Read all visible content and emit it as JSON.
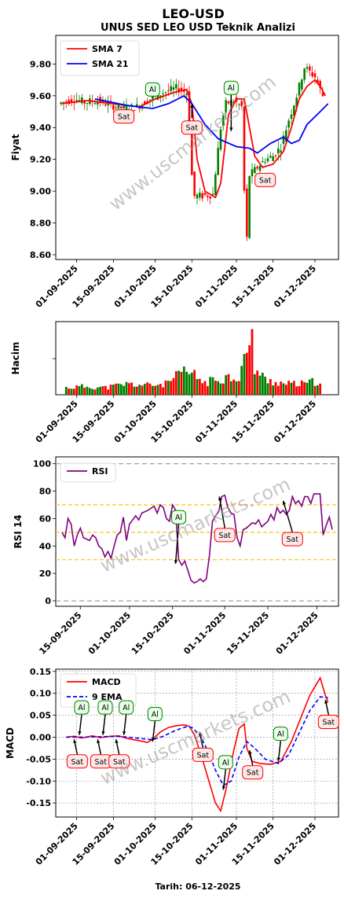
{
  "title": "LEO-USD",
  "subtitle": "UNUS SED LEO USD Teknik Analizi",
  "watermark": "www.uscmarkets.com",
  "footer": "Tarih: 06-12-2025",
  "colors": {
    "up": "#008000",
    "down": "#ff0000",
    "sma7": "#ff0000",
    "sma21": "#0000ff",
    "rsi": "#800080",
    "macd": "#ff0000",
    "ema": "#0000ff",
    "buy_border": "#008000",
    "sell_border": "#ff0000",
    "buy_fill": "#e8ffe8",
    "sell_fill": "#ffe8e8"
  },
  "chart_data": [
    {
      "id": "price",
      "type": "candlestick",
      "ylabel": "Fiyat",
      "ylim": [
        8.57,
        9.98
      ],
      "yticks": [
        8.6,
        8.8,
        9.0,
        9.2,
        9.4,
        9.6,
        9.8
      ],
      "ytick_labels": [
        "8.60",
        "8.80",
        "9.00",
        "9.20",
        "9.40",
        "9.60",
        "9.80"
      ],
      "xticks": [
        "01-09-2025",
        "15-09-2025",
        "01-10-2025",
        "15-10-2025",
        "01-11-2025",
        "15-11-2025",
        "01-12-2025"
      ],
      "legend": [
        "SMA 7",
        "SMA 21"
      ],
      "close_series": [
        [
          "2025-08-26",
          9.55
        ],
        [
          "2025-09-01",
          9.58
        ],
        [
          "2025-09-05",
          9.56
        ],
        [
          "2025-09-10",
          9.57
        ],
        [
          "2025-09-15",
          9.54
        ],
        [
          "2025-09-20",
          9.52
        ],
        [
          "2025-09-25",
          9.53
        ],
        [
          "2025-09-30",
          9.58
        ],
        [
          "2025-10-05",
          9.62
        ],
        [
          "2025-10-10",
          9.65
        ],
        [
          "2025-10-14",
          9.62
        ],
        [
          "2025-10-15",
          9.4
        ],
        [
          "2025-10-16",
          9.1
        ],
        [
          "2025-10-17",
          8.97
        ],
        [
          "2025-10-20",
          8.97
        ],
        [
          "2025-10-24",
          8.98
        ],
        [
          "2025-10-27",
          9.4
        ],
        [
          "2025-10-29",
          9.55
        ],
        [
          "2025-11-01",
          9.57
        ],
        [
          "2025-11-04",
          9.53
        ],
        [
          "2025-11-05",
          9.0
        ],
        [
          "2025-11-06",
          8.7
        ],
        [
          "2025-11-07",
          9.1
        ],
        [
          "2025-11-10",
          9.15
        ],
        [
          "2025-11-13",
          9.2
        ],
        [
          "2025-11-16",
          9.22
        ],
        [
          "2025-11-19",
          9.28
        ],
        [
          "2025-11-22",
          9.45
        ],
        [
          "2025-11-25",
          9.6
        ],
        [
          "2025-11-28",
          9.78
        ],
        [
          "2025-12-02",
          9.72
        ],
        [
          "2025-12-05",
          9.6
        ]
      ],
      "sma7": [
        [
          "2025-08-26",
          9.55
        ],
        [
          "2025-09-05",
          9.57
        ],
        [
          "2025-09-15",
          9.55
        ],
        [
          "2025-09-25",
          9.53
        ],
        [
          "2025-10-01",
          9.58
        ],
        [
          "2025-10-08",
          9.62
        ],
        [
          "2025-10-13",
          9.64
        ],
        [
          "2025-10-15",
          9.55
        ],
        [
          "2025-10-17",
          9.2
        ],
        [
          "2025-10-20",
          9.0
        ],
        [
          "2025-10-24",
          8.96
        ],
        [
          "2025-10-26",
          9.05
        ],
        [
          "2025-10-29",
          9.48
        ],
        [
          "2025-11-01",
          9.58
        ],
        [
          "2025-11-04",
          9.58
        ],
        [
          "2025-11-06",
          9.4
        ],
        [
          "2025-11-08",
          9.22
        ],
        [
          "2025-11-11",
          9.15
        ],
        [
          "2025-11-15",
          9.17
        ],
        [
          "2025-11-19",
          9.25
        ],
        [
          "2025-11-22",
          9.4
        ],
        [
          "2025-11-25",
          9.58
        ],
        [
          "2025-11-28",
          9.66
        ],
        [
          "2025-12-01",
          9.7
        ],
        [
          "2025-12-03",
          9.66
        ],
        [
          "2025-12-05",
          9.6
        ]
      ],
      "sma21": [
        [
          "2025-09-08",
          9.58
        ],
        [
          "2025-09-20",
          9.54
        ],
        [
          "2025-09-30",
          9.52
        ],
        [
          "2025-10-06",
          9.55
        ],
        [
          "2025-10-12",
          9.6
        ],
        [
          "2025-10-15",
          9.55
        ],
        [
          "2025-10-20",
          9.42
        ],
        [
          "2025-10-25",
          9.33
        ],
        [
          "2025-11-01",
          9.28
        ],
        [
          "2025-11-06",
          9.27
        ],
        [
          "2025-11-09",
          9.24
        ],
        [
          "2025-11-14",
          9.3
        ],
        [
          "2025-11-19",
          9.34
        ],
        [
          "2025-11-22",
          9.3
        ],
        [
          "2025-11-25",
          9.32
        ],
        [
          "2025-11-28",
          9.42
        ],
        [
          "2025-12-03",
          9.5
        ],
        [
          "2025-12-06",
          9.55
        ]
      ],
      "signals": [
        {
          "label": "Sat",
          "date": "2025-09-19",
          "value": 9.47
        },
        {
          "label": "Al",
          "date": "2025-09-30",
          "value": 9.64
        },
        {
          "label": "Sat",
          "date": "2025-10-15",
          "value": 9.4
        },
        {
          "label": "Al",
          "date": "2025-10-30",
          "value": 9.65
        },
        {
          "label": "Sat",
          "date": "2025-11-12",
          "value": 9.07
        }
      ]
    },
    {
      "id": "volume",
      "type": "bar",
      "ylabel": "Hacim",
      "xticks": [
        "01-09-2025",
        "15-09-2025",
        "01-10-2025",
        "15-10-2025",
        "01-11-2025",
        "15-11-2025",
        "01-12-2025"
      ],
      "volumes": [
        [
          "2025-08-28",
          0.12
        ],
        [
          "2025-09-05",
          0.14
        ],
        [
          "2025-09-12",
          0.12
        ],
        [
          "2025-09-20",
          0.18
        ],
        [
          "2025-09-28",
          0.16
        ],
        [
          "2025-10-05",
          0.18
        ],
        [
          "2025-10-12",
          0.38
        ],
        [
          "2025-10-15",
          0.35
        ],
        [
          "2025-10-20",
          0.2
        ],
        [
          "2025-10-28",
          0.3
        ],
        [
          "2025-11-02",
          0.3
        ],
        [
          "2025-11-05",
          0.76
        ],
        [
          "2025-11-06",
          0.65
        ],
        [
          "2025-11-07",
          1.0
        ],
        [
          "2025-11-08",
          0.45
        ],
        [
          "2025-11-12",
          0.25
        ],
        [
          "2025-11-20",
          0.18
        ],
        [
          "2025-11-27",
          0.18
        ],
        [
          "2025-12-04",
          0.25
        ]
      ]
    },
    {
      "id": "rsi",
      "type": "line",
      "ylabel": "RSI 14",
      "ylim": [
        -4,
        105
      ],
      "yticks": [
        0,
        20,
        40,
        60,
        80,
        100
      ],
      "ytick_labels": [
        "0",
        "20",
        "40",
        "60",
        "80",
        "100"
      ],
      "xticks": [
        "15-09-2025",
        "01-10-2025",
        "15-10-2025",
        "01-11-2025",
        "15-11-2025",
        "01-12-2025"
      ],
      "legend": [
        "RSI"
      ],
      "hlines": [
        0,
        30,
        50,
        70,
        100
      ],
      "values": [
        [
          "2025-09-09",
          50
        ],
        [
          "2025-09-10",
          46
        ],
        [
          "2025-09-11",
          60
        ],
        [
          "2025-09-12",
          56
        ],
        [
          "2025-09-13",
          40
        ],
        [
          "2025-09-14",
          48
        ],
        [
          "2025-09-15",
          53
        ],
        [
          "2025-09-16",
          46
        ],
        [
          "2025-09-18",
          44
        ],
        [
          "2025-09-19",
          48
        ],
        [
          "2025-09-20",
          46
        ],
        [
          "2025-09-21",
          40
        ],
        [
          "2025-09-22",
          38
        ],
        [
          "2025-09-23",
          32
        ],
        [
          "2025-09-24",
          36
        ],
        [
          "2025-09-25",
          31
        ],
        [
          "2025-09-26",
          40
        ],
        [
          "2025-09-27",
          48
        ],
        [
          "2025-09-28",
          50
        ],
        [
          "2025-09-29",
          61
        ],
        [
          "2025-09-30",
          44
        ],
        [
          "2025-10-01",
          56
        ],
        [
          "2025-10-02",
          59
        ],
        [
          "2025-10-03",
          62
        ],
        [
          "2025-10-04",
          59
        ],
        [
          "2025-10-05",
          64
        ],
        [
          "2025-10-07",
          66
        ],
        [
          "2025-10-09",
          69
        ],
        [
          "2025-10-10",
          64
        ],
        [
          "2025-10-11",
          70
        ],
        [
          "2025-10-12",
          68
        ],
        [
          "2025-10-13",
          60
        ],
        [
          "2025-10-14",
          58
        ],
        [
          "2025-10-15",
          70
        ],
        [
          "2025-10-16",
          66
        ],
        [
          "2025-10-17",
          30
        ],
        [
          "2025-10-18",
          26
        ],
        [
          "2025-10-19",
          29
        ],
        [
          "2025-10-20",
          22
        ],
        [
          "2025-10-21",
          15
        ],
        [
          "2025-10-22",
          13
        ],
        [
          "2025-10-23",
          14
        ],
        [
          "2025-10-24",
          16
        ],
        [
          "2025-10-25",
          14
        ],
        [
          "2025-10-26",
          16
        ],
        [
          "2025-10-27",
          33
        ],
        [
          "2025-10-28",
          58
        ],
        [
          "2025-10-29",
          62
        ],
        [
          "2025-10-30",
          65
        ],
        [
          "2025-10-31",
          76
        ],
        [
          "2025-11-01",
          77
        ],
        [
          "2025-11-02",
          68
        ],
        [
          "2025-11-03",
          64
        ],
        [
          "2025-11-04",
          63
        ],
        [
          "2025-11-05",
          46
        ],
        [
          "2025-11-06",
          40
        ],
        [
          "2025-11-07",
          52
        ],
        [
          "2025-11-08",
          53
        ],
        [
          "2025-11-09",
          55
        ],
        [
          "2025-11-10",
          57
        ],
        [
          "2025-11-11",
          56
        ],
        [
          "2025-11-12",
          59
        ],
        [
          "2025-11-13",
          54
        ],
        [
          "2025-11-15",
          58
        ],
        [
          "2025-11-16",
          63
        ],
        [
          "2025-11-17",
          59
        ],
        [
          "2025-11-18",
          68
        ],
        [
          "2025-11-19",
          64
        ],
        [
          "2025-11-20",
          66
        ],
        [
          "2025-11-21",
          63
        ],
        [
          "2025-11-22",
          66
        ],
        [
          "2025-11-23",
          76
        ],
        [
          "2025-11-24",
          71
        ],
        [
          "2025-11-25",
          73
        ],
        [
          "2025-11-26",
          69
        ],
        [
          "2025-11-27",
          76
        ],
        [
          "2025-11-28",
          76
        ],
        [
          "2025-11-29",
          71
        ],
        [
          "2025-11-30",
          78
        ],
        [
          "2025-12-01",
          78
        ],
        [
          "2025-12-02",
          78
        ],
        [
          "2025-12-03",
          48
        ],
        [
          "2025-12-04",
          55
        ],
        [
          "2025-12-05",
          61
        ],
        [
          "2025-12-06",
          52
        ]
      ],
      "signals": [
        {
          "label": "Al",
          "date": "2025-10-17",
          "value": 61
        },
        {
          "label": "Sat",
          "date": "2025-11-01",
          "value": 48
        },
        {
          "label": "Sat",
          "date": "2025-11-23",
          "value": 45
        }
      ]
    },
    {
      "id": "macd",
      "type": "line",
      "ylabel": "MACD",
      "ylim": [
        -0.182,
        0.155
      ],
      "yticks": [
        -0.15,
        -0.1,
        -0.05,
        0.0,
        0.05,
        0.1,
        0.15
      ],
      "ytick_labels": [
        "-0.15",
        "-0.10",
        "-0.05",
        "0.00",
        "0.05",
        "0.10",
        "0.15"
      ],
      "xticks": [
        "01-09-2025",
        "15-09-2025",
        "01-10-2025",
        "15-10-2025",
        "01-11-2025",
        "15-11-2025",
        "01-12-2025"
      ],
      "legend": [
        "MACD",
        "9 EMA"
      ],
      "macd": [
        [
          "2025-08-28",
          0.0
        ],
        [
          "2025-08-31",
          0.002
        ],
        [
          "2025-09-03",
          -0.002
        ],
        [
          "2025-09-07",
          0.003
        ],
        [
          "2025-09-10",
          -0.001
        ],
        [
          "2025-09-14",
          0.002
        ],
        [
          "2025-09-17",
          0.003
        ],
        [
          "2025-09-21",
          -0.004
        ],
        [
          "2025-09-25",
          -0.008
        ],
        [
          "2025-09-28",
          -0.012
        ],
        [
          "2025-09-30",
          -0.005
        ],
        [
          "2025-10-03",
          0.012
        ],
        [
          "2025-10-06",
          0.022
        ],
        [
          "2025-10-09",
          0.026
        ],
        [
          "2025-10-12",
          0.028
        ],
        [
          "2025-10-14",
          0.025
        ],
        [
          "2025-10-16",
          0.005
        ],
        [
          "2025-10-19",
          -0.05
        ],
        [
          "2025-10-22",
          -0.11
        ],
        [
          "2025-10-24",
          -0.15
        ],
        [
          "2025-10-26",
          -0.168
        ],
        [
          "2025-10-28",
          -0.12
        ],
        [
          "2025-10-31",
          -0.03
        ],
        [
          "2025-11-02",
          0.02
        ],
        [
          "2025-11-04",
          0.03
        ],
        [
          "2025-11-05",
          -0.025
        ],
        [
          "2025-11-07",
          -0.055
        ],
        [
          "2025-11-10",
          -0.06
        ],
        [
          "2025-11-14",
          -0.062
        ],
        [
          "2025-11-18",
          -0.055
        ],
        [
          "2025-11-22",
          -0.01
        ],
        [
          "2025-11-26",
          0.05
        ],
        [
          "2025-11-29",
          0.095
        ],
        [
          "2025-12-01",
          0.115
        ],
        [
          "2025-12-03",
          0.135
        ],
        [
          "2025-12-05",
          0.095
        ],
        [
          "2025-12-06",
          0.08
        ]
      ],
      "ema": [
        [
          "2025-08-28",
          0.0
        ],
        [
          "2025-09-03",
          0.0
        ],
        [
          "2025-09-10",
          0.001
        ],
        [
          "2025-09-17",
          0.002
        ],
        [
          "2025-09-24",
          -0.002
        ],
        [
          "2025-09-30",
          -0.006
        ],
        [
          "2025-10-04",
          0.002
        ],
        [
          "2025-10-09",
          0.016
        ],
        [
          "2025-10-13",
          0.024
        ],
        [
          "2025-10-15",
          0.022
        ],
        [
          "2025-10-18",
          0.005
        ],
        [
          "2025-10-21",
          -0.03
        ],
        [
          "2025-10-24",
          -0.075
        ],
        [
          "2025-10-27",
          -0.11
        ],
        [
          "2025-10-30",
          -0.1
        ],
        [
          "2025-11-02",
          -0.045
        ],
        [
          "2025-11-05",
          -0.01
        ],
        [
          "2025-11-08",
          -0.025
        ],
        [
          "2025-11-12",
          -0.05
        ],
        [
          "2025-11-17",
          -0.06
        ],
        [
          "2025-11-21",
          -0.04
        ],
        [
          "2025-11-25",
          0.01
        ],
        [
          "2025-11-29",
          0.06
        ],
        [
          "2025-12-03",
          0.092
        ],
        [
          "2025-12-06",
          0.09
        ]
      ],
      "signals": [
        {
          "label": "Sat",
          "date": "2025-08-31",
          "value": -0.005,
          "box": "below"
        },
        {
          "label": "Al",
          "date": "2025-09-02",
          "value": 0.005,
          "box": "above"
        },
        {
          "label": "Sat",
          "date": "2025-09-09",
          "value": -0.005,
          "box": "below"
        },
        {
          "label": "Al",
          "date": "2025-09-11",
          "value": 0.005,
          "box": "above"
        },
        {
          "label": "Sat",
          "date": "2025-09-16",
          "value": -0.005,
          "box": "below"
        },
        {
          "label": "Al",
          "date": "2025-09-19",
          "value": 0.005,
          "box": "above"
        },
        {
          "label": "Al",
          "date": "2025-09-30",
          "value": -0.01,
          "box": "above"
        },
        {
          "label": "Sat",
          "date": "2025-10-18",
          "value": 0.01,
          "box": "below"
        },
        {
          "label": "Al",
          "date": "2025-10-27",
          "value": -0.12,
          "box": "above"
        },
        {
          "label": "Sat",
          "date": "2025-11-06",
          "value": -0.03,
          "box": "below"
        },
        {
          "label": "Al",
          "date": "2025-11-17",
          "value": -0.055,
          "box": "above"
        },
        {
          "label": "Sat",
          "date": "2025-12-05",
          "value": 0.085,
          "box": "below"
        }
      ]
    }
  ]
}
